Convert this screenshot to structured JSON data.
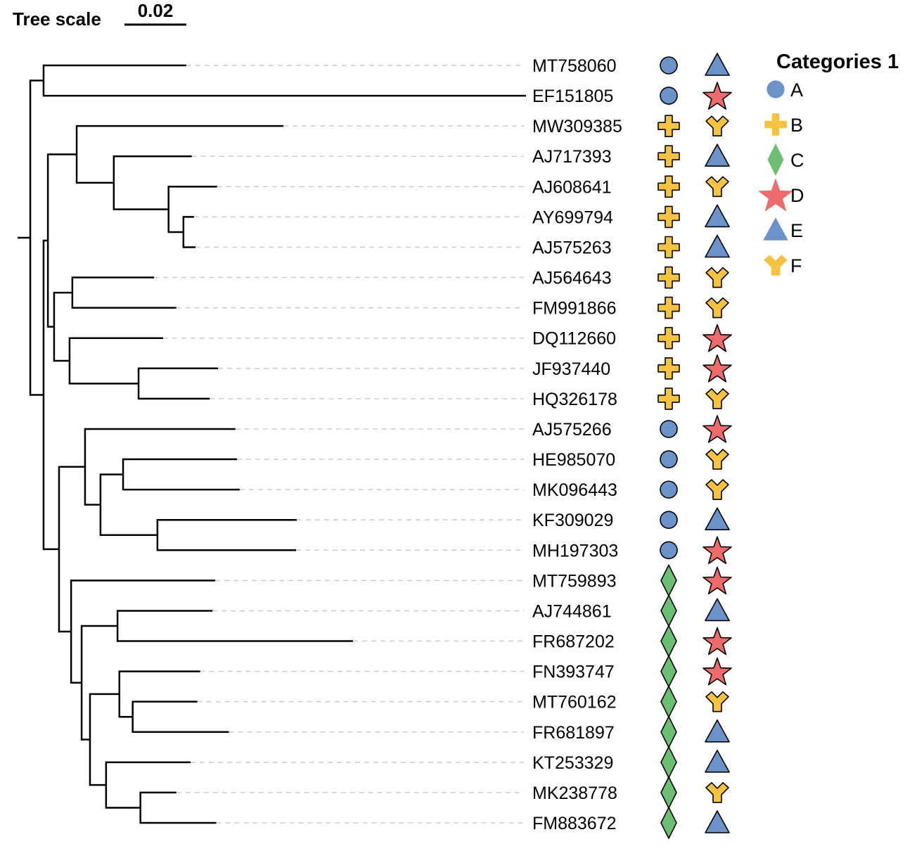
{
  "tree_scale": {
    "label": "Tree scale",
    "value_label": "0.02",
    "value": 0.02
  },
  "colors": {
    "A": "#6b93c9",
    "B": "#f5c242",
    "C": "#6bbf73",
    "D": "#ee6b6b",
    "E": "#6b93c9",
    "F": "#f5c242",
    "branch": "#000000",
    "guide": "#cccccc"
  },
  "shapes": {
    "A": "circle",
    "B": "cross",
    "C": "diamond",
    "D": "star",
    "E": "triangle",
    "F": "y-shape"
  },
  "legend": {
    "title": "Categories 1",
    "items": [
      {
        "key": "A",
        "label": "A"
      },
      {
        "key": "B",
        "label": "B"
      },
      {
        "key": "C",
        "label": "C"
      },
      {
        "key": "D",
        "label": "D"
      },
      {
        "key": "E",
        "label": "E"
      },
      {
        "key": "F",
        "label": "F"
      }
    ]
  },
  "tips": [
    {
      "name": "MT758060",
      "cat1": "A",
      "cat2": "E"
    },
    {
      "name": "EF151805",
      "cat1": "A",
      "cat2": "D"
    },
    {
      "name": "MW309385",
      "cat1": "B",
      "cat2": "F"
    },
    {
      "name": "AJ717393",
      "cat1": "B",
      "cat2": "E"
    },
    {
      "name": "AJ608641",
      "cat1": "B",
      "cat2": "F"
    },
    {
      "name": "AY699794",
      "cat1": "B",
      "cat2": "E"
    },
    {
      "name": "AJ575263",
      "cat1": "B",
      "cat2": "E"
    },
    {
      "name": "AJ564643",
      "cat1": "B",
      "cat2": "F"
    },
    {
      "name": "FM991866",
      "cat1": "B",
      "cat2": "F"
    },
    {
      "name": "DQ112660",
      "cat1": "B",
      "cat2": "D"
    },
    {
      "name": "JF937440",
      "cat1": "B",
      "cat2": "D"
    },
    {
      "name": "HQ326178",
      "cat1": "B",
      "cat2": "F"
    },
    {
      "name": "AJ575266",
      "cat1": "A",
      "cat2": "D"
    },
    {
      "name": "HE985070",
      "cat1": "A",
      "cat2": "F"
    },
    {
      "name": "MK096443",
      "cat1": "A",
      "cat2": "F"
    },
    {
      "name": "KF309029",
      "cat1": "A",
      "cat2": "E"
    },
    {
      "name": "MH197303",
      "cat1": "A",
      "cat2": "D"
    },
    {
      "name": "MT759893",
      "cat1": "C",
      "cat2": "D"
    },
    {
      "name": "AJ744861",
      "cat1": "C",
      "cat2": "E"
    },
    {
      "name": "FR687202",
      "cat1": "C",
      "cat2": "D"
    },
    {
      "name": "FN393747",
      "cat1": "C",
      "cat2": "D"
    },
    {
      "name": "MT760162",
      "cat1": "C",
      "cat2": "F"
    },
    {
      "name": "FR681897",
      "cat1": "C",
      "cat2": "E"
    },
    {
      "name": "KT253329",
      "cat1": "C",
      "cat2": "E"
    },
    {
      "name": "MK238778",
      "cat1": "C",
      "cat2": "F"
    },
    {
      "name": "FM883672",
      "cat1": "C",
      "cat2": "E"
    }
  ],
  "tree": {
    "length": 0.0041,
    "children": [
      {
        "length": 0.0043,
        "children": [
          {
            "tip": "MT758060",
            "length": 0.0461
          },
          {
            "tip": "EF151805",
            "length": 0.1559
          }
        ]
      },
      {
        "length": 0.0043,
        "children": [
          {
            "length": 0.0014,
            "children": [
              {
                "length": 0.0093,
                "children": [
                  {
                    "tip": "MW309385",
                    "length": 0.0668
                  },
                  {
                    "length": 0.012,
                    "children": [
                      {
                        "tip": "AJ717393",
                        "length": 0.0252
                      },
                      {
                        "length": 0.0177,
                        "children": [
                          {
                            "tip": "AJ608641",
                            "length": 0.0157
                          },
                          {
                            "length": 0.0048,
                            "children": [
                              {
                                "tip": "AY699794",
                                "length": 0.0034
                              },
                              {
                                "tip": "AJ575263",
                                "length": 0.0039
                              }
                            ]
                          }
                        ]
                      }
                    ]
                  }
                ]
              },
              {
                "length": 0.002,
                "children": [
                  {
                    "length": 0.0059,
                    "children": [
                      {
                        "tip": "AJ564643",
                        "length": 0.0264
                      },
                      {
                        "tip": "FM991866",
                        "length": 0.0336
                      }
                    ]
                  },
                  {
                    "length": 0.005,
                    "children": [
                      {
                        "tip": "DQ112660",
                        "length": 0.0302
                      },
                      {
                        "length": 0.0223,
                        "children": [
                          {
                            "tip": "JF937440",
                            "length": 0.0257
                          },
                          {
                            "tip": "HQ326178",
                            "length": 0.023
                          }
                        ]
                      }
                    ]
                  }
                ]
              }
            ]
          },
          {
            "length": 0.005,
            "children": [
              {
                "length": 0.0084,
                "children": [
                  {
                    "tip": "AJ575266",
                    "length": 0.0486
                  },
                  {
                    "length": 0.005,
                    "children": [
                      {
                        "length": 0.0073,
                        "children": [
                          {
                            "tip": "HE985070",
                            "length": 0.0368
                          },
                          {
                            "tip": "MK096443",
                            "length": 0.0377
                          }
                        ]
                      },
                      {
                        "length": 0.0184,
                        "children": [
                          {
                            "tip": "KF309029",
                            "length": 0.045
                          },
                          {
                            "tip": "MH197303",
                            "length": 0.0448
                          }
                        ]
                      }
                    ]
                  }
                ]
              },
              {
                "length": 0.0039,
                "children": [
                  {
                    "tip": "MT759893",
                    "length": 0.0466
                  },
                  {
                    "length": 0.0034,
                    "children": [
                      {
                        "length": 0.0116,
                        "children": [
                          {
                            "tip": "AJ744861",
                            "length": 0.0307
                          },
                          {
                            "tip": "FR687202",
                            "length": 0.0761
                          }
                        ]
                      },
                      {
                        "length": 0.0027,
                        "children": [
                          {
                            "length": 0.0095,
                            "children": [
                              {
                                "tip": "FN393747",
                                "length": 0.0261
                              },
                              {
                                "length": 0.0043,
                                "children": [
                                  {
                                    "tip": "MT760162",
                                    "length": 0.0209
                                  },
                                  {
                                    "tip": "FR681897",
                                    "length": 0.0311
                                  }
                                ]
                              }
                            ]
                          },
                          {
                            "length": 0.0052,
                            "children": [
                              {
                                "tip": "KT253329",
                                "length": 0.0273
                              },
                              {
                                "length": 0.0111,
                                "children": [
                                  {
                                    "tip": "MK238778",
                                    "length": 0.0116
                                  },
                                  {
                                    "tip": "FM883672",
                                    "length": 0.0245
                                  }
                                ]
                              }
                            ]
                          }
                        ]
                      }
                    ]
                  }
                ]
              }
            ]
          }
        ]
      }
    ]
  }
}
